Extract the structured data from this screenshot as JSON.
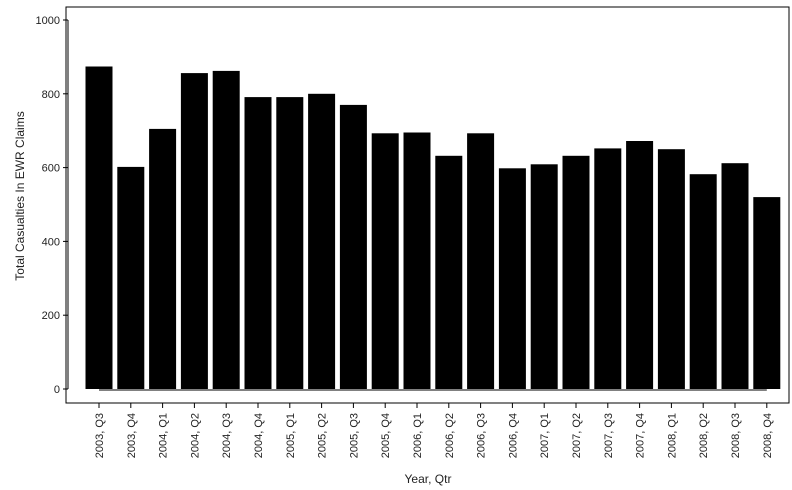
{
  "chart_data": {
    "type": "bar",
    "title": "",
    "xlabel": "Year, Qtr",
    "ylabel": "Total Casualties In EWR Claims",
    "ylim": [
      0,
      1000
    ],
    "yticks": [
      0,
      200,
      400,
      600,
      800,
      1000
    ],
    "grid": false,
    "legend": "none",
    "bar_color": "#000000",
    "categories": [
      "2003, Q3",
      "2003, Q4",
      "2004, Q1",
      "2004, Q2",
      "2004, Q3",
      "2004, Q4",
      "2005, Q1",
      "2005, Q2",
      "2005, Q3",
      "2005, Q4",
      "2006, Q1",
      "2006, Q2",
      "2006, Q3",
      "2006, Q4",
      "2007, Q1",
      "2007, Q2",
      "2007, Q3",
      "2007, Q4",
      "2008, Q1",
      "2008, Q2",
      "2008, Q3",
      "2008, Q4"
    ],
    "values": [
      874,
      602,
      705,
      856,
      862,
      791,
      791,
      800,
      770,
      693,
      695,
      632,
      693,
      598,
      609,
      632,
      652,
      672,
      650,
      582,
      612,
      520
    ]
  }
}
